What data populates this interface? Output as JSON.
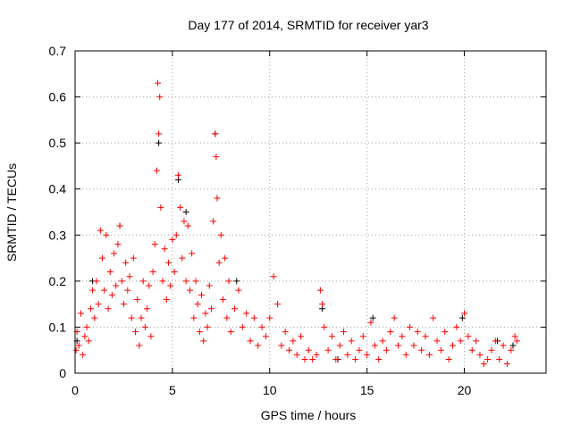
{
  "chart_data": {
    "type": "scatter",
    "title": "Day 177 of 2014, SRMTID for receiver yar3",
    "xlabel": "GPS time / hours",
    "ylabel": "SRMTID / TECUs",
    "xlim": [
      0,
      24.2
    ],
    "ylim": [
      0,
      0.7
    ],
    "xticks": [
      0,
      5,
      10,
      15,
      20
    ],
    "xtick_labels": [
      "0",
      "5",
      "10",
      "15",
      "20"
    ],
    "yticks": [
      0,
      0.1,
      0.2,
      0.3,
      0.4,
      0.5,
      0.6,
      0.7
    ],
    "ytick_labels": [
      "0",
      "0.1",
      "0.2",
      "0.3",
      "0.4",
      "0.5",
      "0.6",
      "0.7"
    ],
    "grid": true,
    "marker": "+",
    "series": [
      {
        "name": "other",
        "color": "#000000",
        "points": [
          [
            0.1,
            0.07
          ],
          [
            0.9,
            0.2
          ],
          [
            2.3,
            0.32
          ],
          [
            4.3,
            0.5
          ],
          [
            5.3,
            0.42
          ],
          [
            5.7,
            0.35
          ],
          [
            7.3,
            0.38
          ],
          [
            7.2,
            0.52
          ],
          [
            8.3,
            0.2
          ],
          [
            12.7,
            0.14
          ],
          [
            13.5,
            0.03
          ],
          [
            15.3,
            0.12
          ],
          [
            19.9,
            0.12
          ],
          [
            21.7,
            0.07
          ],
          [
            22.5,
            0.06
          ]
        ]
      },
      {
        "name": "main",
        "color": "#ff0000",
        "points": [
          [
            0.05,
            0.05
          ],
          [
            0.1,
            0.09
          ],
          [
            0.2,
            0.06
          ],
          [
            0.3,
            0.13
          ],
          [
            0.4,
            0.04
          ],
          [
            0.5,
            0.08
          ],
          [
            0.6,
            0.1
          ],
          [
            0.7,
            0.07
          ],
          [
            0.8,
            0.14
          ],
          [
            0.9,
            0.18
          ],
          [
            1.0,
            0.12
          ],
          [
            1.1,
            0.2
          ],
          [
            1.2,
            0.15
          ],
          [
            1.3,
            0.31
          ],
          [
            1.4,
            0.25
          ],
          [
            1.5,
            0.18
          ],
          [
            1.6,
            0.3
          ],
          [
            1.7,
            0.14
          ],
          [
            1.8,
            0.22
          ],
          [
            1.9,
            0.17
          ],
          [
            2.0,
            0.26
          ],
          [
            2.1,
            0.19
          ],
          [
            2.2,
            0.28
          ],
          [
            2.3,
            0.32
          ],
          [
            2.4,
            0.2
          ],
          [
            2.5,
            0.15
          ],
          [
            2.6,
            0.24
          ],
          [
            2.7,
            0.18
          ],
          [
            2.8,
            0.21
          ],
          [
            2.9,
            0.12
          ],
          [
            3.0,
            0.25
          ],
          [
            3.1,
            0.09
          ],
          [
            3.2,
            0.16
          ],
          [
            3.3,
            0.06
          ],
          [
            3.4,
            0.12
          ],
          [
            3.5,
            0.2
          ],
          [
            3.6,
            0.1
          ],
          [
            3.7,
            0.14
          ],
          [
            3.8,
            0.19
          ],
          [
            3.9,
            0.08
          ],
          [
            4.0,
            0.22
          ],
          [
            4.1,
            0.28
          ],
          [
            4.2,
            0.44
          ],
          [
            4.25,
            0.63
          ],
          [
            4.3,
            0.52
          ],
          [
            4.35,
            0.6
          ],
          [
            4.4,
            0.36
          ],
          [
            4.5,
            0.2
          ],
          [
            4.6,
            0.27
          ],
          [
            4.7,
            0.16
          ],
          [
            4.8,
            0.24
          ],
          [
            4.9,
            0.19
          ],
          [
            5.0,
            0.29
          ],
          [
            5.1,
            0.22
          ],
          [
            5.2,
            0.3
          ],
          [
            5.3,
            0.43
          ],
          [
            5.4,
            0.36
          ],
          [
            5.5,
            0.25
          ],
          [
            5.6,
            0.33
          ],
          [
            5.7,
            0.2
          ],
          [
            5.8,
            0.32
          ],
          [
            5.9,
            0.18
          ],
          [
            6.0,
            0.26
          ],
          [
            6.1,
            0.12
          ],
          [
            6.2,
            0.2
          ],
          [
            6.3,
            0.15
          ],
          [
            6.4,
            0.09
          ],
          [
            6.5,
            0.17
          ],
          [
            6.6,
            0.07
          ],
          [
            6.7,
            0.13
          ],
          [
            6.8,
            0.1
          ],
          [
            6.9,
            0.19
          ],
          [
            7.0,
            0.14
          ],
          [
            7.1,
            0.33
          ],
          [
            7.2,
            0.52
          ],
          [
            7.25,
            0.47
          ],
          [
            7.3,
            0.38
          ],
          [
            7.4,
            0.24
          ],
          [
            7.5,
            0.3
          ],
          [
            7.6,
            0.16
          ],
          [
            7.7,
            0.25
          ],
          [
            7.8,
            0.12
          ],
          [
            7.9,
            0.2
          ],
          [
            8.0,
            0.09
          ],
          [
            8.2,
            0.14
          ],
          [
            8.4,
            0.18
          ],
          [
            8.6,
            0.1
          ],
          [
            8.8,
            0.13
          ],
          [
            9.0,
            0.07
          ],
          [
            9.2,
            0.12
          ],
          [
            9.4,
            0.06
          ],
          [
            9.6,
            0.1
          ],
          [
            9.8,
            0.08
          ],
          [
            10.0,
            0.12
          ],
          [
            10.2,
            0.21
          ],
          [
            10.4,
            0.15
          ],
          [
            10.6,
            0.06
          ],
          [
            10.8,
            0.09
          ],
          [
            11.0,
            0.05
          ],
          [
            11.2,
            0.07
          ],
          [
            11.4,
            0.04
          ],
          [
            11.6,
            0.08
          ],
          [
            11.8,
            0.03
          ],
          [
            12.0,
            0.05
          ],
          [
            12.2,
            0.03
          ],
          [
            12.4,
            0.04
          ],
          [
            12.6,
            0.18
          ],
          [
            12.7,
            0.15
          ],
          [
            12.8,
            0.1
          ],
          [
            13.0,
            0.05
          ],
          [
            13.2,
            0.08
          ],
          [
            13.4,
            0.03
          ],
          [
            13.6,
            0.06
          ],
          [
            13.8,
            0.09
          ],
          [
            14.0,
            0.04
          ],
          [
            14.2,
            0.07
          ],
          [
            14.4,
            0.03
          ],
          [
            14.6,
            0.05
          ],
          [
            14.8,
            0.08
          ],
          [
            15.0,
            0.04
          ],
          [
            15.2,
            0.11
          ],
          [
            15.4,
            0.06
          ],
          [
            15.6,
            0.03
          ],
          [
            15.8,
            0.07
          ],
          [
            16.0,
            0.05
          ],
          [
            16.2,
            0.09
          ],
          [
            16.4,
            0.12
          ],
          [
            16.6,
            0.06
          ],
          [
            16.8,
            0.08
          ],
          [
            17.0,
            0.04
          ],
          [
            17.2,
            0.1
          ],
          [
            17.4,
            0.06
          ],
          [
            17.6,
            0.09
          ],
          [
            17.8,
            0.05
          ],
          [
            18.0,
            0.08
          ],
          [
            18.2,
            0.04
          ],
          [
            18.4,
            0.12
          ],
          [
            18.6,
            0.07
          ],
          [
            18.8,
            0.05
          ],
          [
            19.0,
            0.09
          ],
          [
            19.2,
            0.03
          ],
          [
            19.4,
            0.06
          ],
          [
            19.6,
            0.1
          ],
          [
            19.8,
            0.07
          ],
          [
            20.0,
            0.13
          ],
          [
            20.2,
            0.08
          ],
          [
            20.4,
            0.05
          ],
          [
            20.6,
            0.07
          ],
          [
            20.8,
            0.04
          ],
          [
            21.0,
            0.02
          ],
          [
            21.2,
            0.03
          ],
          [
            21.4,
            0.05
          ],
          [
            21.6,
            0.07
          ],
          [
            21.8,
            0.03
          ],
          [
            22.0,
            0.06
          ],
          [
            22.2,
            0.02
          ],
          [
            22.4,
            0.05
          ],
          [
            22.6,
            0.08
          ],
          [
            22.7,
            0.07
          ]
        ]
      }
    ]
  }
}
